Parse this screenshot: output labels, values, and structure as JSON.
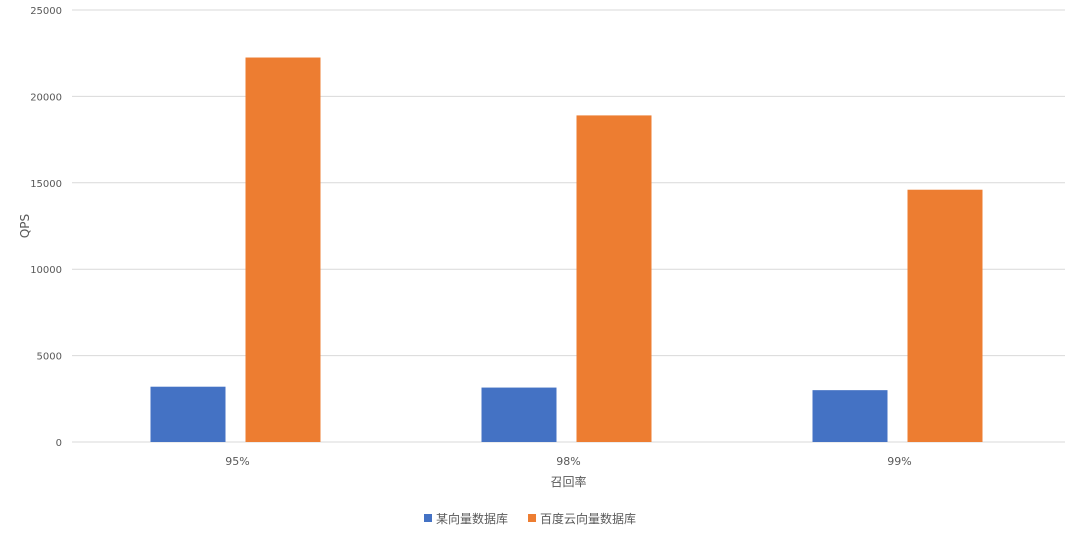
{
  "chart_data": {
    "type": "bar",
    "categories": [
      "95%",
      "98%",
      "99%"
    ],
    "series": [
      {
        "name": "某向量数据库",
        "values": [
          3200,
          3150,
          3000
        ],
        "color": "#4472C4"
      },
      {
        "name": "百度云向量数据库",
        "values": [
          22250,
          18900,
          14600
        ],
        "color": "#ED7D31"
      }
    ],
    "xlabel": "召回率",
    "ylabel": "QPS",
    "ylim": [
      0,
      25000
    ],
    "yticks": [
      0,
      5000,
      10000,
      15000,
      20000,
      25000
    ],
    "grid": true,
    "legend": "bottom"
  }
}
